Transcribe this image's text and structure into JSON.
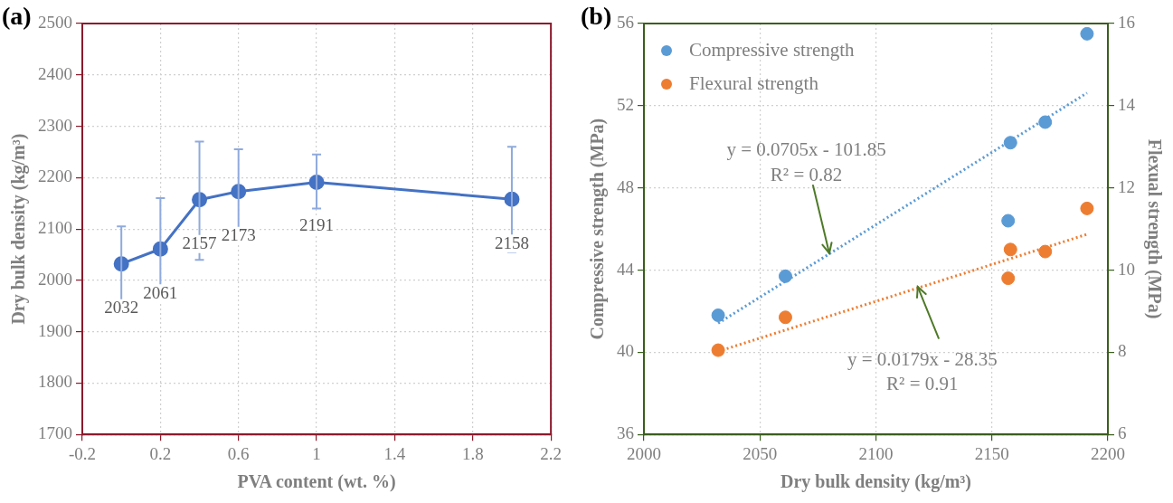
{
  "chart_data": [
    {
      "type": "line",
      "title": "(a)",
      "xlabel": "PVA content (wt. %)",
      "ylabel": "Dry bulk density (kg/m³)",
      "x": [
        0,
        0.2,
        0.4,
        0.6,
        1,
        2
      ],
      "series": [
        {
          "color": "#4472c4",
          "values": [
            2032,
            2061,
            2157,
            2173,
            2191,
            2158
          ],
          "errors": [
            [
              1960,
              2105
            ],
            [
              1965,
              2160
            ],
            [
              2040,
              2270
            ],
            [
              2090,
              2255
            ],
            [
              2140,
              2245
            ],
            [
              2055,
              2260
            ]
          ]
        }
      ],
      "xlim": [
        -0.2,
        2.2
      ],
      "xticks": [
        -0.2,
        0.2,
        0.6,
        1,
        1.4,
        1.8,
        2.2
      ],
      "ylim": [
        1700,
        2500
      ],
      "yticks": [
        1700,
        1800,
        1900,
        2000,
        2100,
        2200,
        2300,
        2400,
        2500
      ],
      "grid": true,
      "data_labels": true,
      "marker": "circle",
      "line_style": "solid"
    },
    {
      "type": "scatter",
      "title": "(b)",
      "xlabel": "Dry bulk density (kg/m³)",
      "ylabel": "Compressive strength (MPa)",
      "y2label": "Flexual strength (MPa)",
      "series": [
        {
          "name": "Compressive strength",
          "color": "#5b9bd5",
          "x": [
            2032,
            2061,
            2157,
            2158,
            2173,
            2191
          ],
          "values": [
            41.8,
            43.7,
            46.4,
            50.2,
            51.2,
            55.5
          ]
        },
        {
          "name": "Flexural strength",
          "color": "#ed7d31",
          "axis": "y2",
          "x": [
            2032,
            2061,
            2157,
            2158,
            2173,
            2191
          ],
          "values": [
            8.05,
            8.85,
            9.8,
            10.5,
            10.45,
            11.5
          ]
        },
        {
          "type": "line",
          "color": "#5b9bd5",
          "x": [
            2032,
            2191
          ],
          "values": [
            41.41,
            52.62
          ],
          "line_style": "dotted",
          "marker": "none"
        },
        {
          "type": "line",
          "color": "#ed7d31",
          "axis": "y2",
          "x": [
            2032,
            2191
          ],
          "values": [
            8.02,
            10.87
          ],
          "line_style": "dotted",
          "marker": "none"
        }
      ],
      "annotations": [
        "y = 0.0705x - 101.85",
        {
          "text": "R² = 0.82",
          "x": 2080,
          "y": 44.8
        },
        {
          "text": "y = 0.0179x - 28.35",
          "x": 2118,
          "y": 43.2
        },
        "R² = 0.91"
      ],
      "xlim": [
        2000,
        2200
      ],
      "xticks": [
        2000,
        2050,
        2100,
        2150,
        2200
      ],
      "ylim": [
        36,
        56
      ],
      "yticks": [
        36,
        40,
        44,
        48,
        52,
        56
      ],
      "y2lim": [
        6,
        16
      ],
      "y2ticks": [
        6,
        8,
        10,
        12,
        14,
        16
      ],
      "grid": true,
      "legend": "top left",
      "marker": "circle"
    }
  ]
}
